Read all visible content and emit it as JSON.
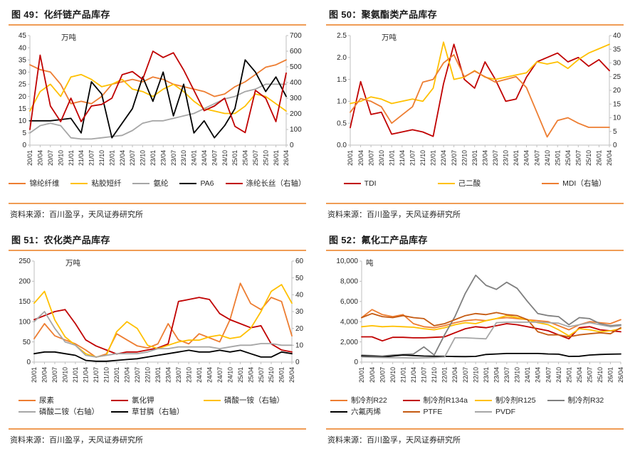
{
  "accent_color": "#F09C55",
  "source_text": "资料来源：百川盈孚，天风证券研究所",
  "chart_data": [
    {
      "type": "line",
      "title": "图 49：化纤链产品库存",
      "unit": "万吨",
      "grid": false,
      "legend_position": "bottom",
      "x": [
        "20/01",
        "20/04",
        "20/07",
        "20/10",
        "21/01",
        "21/04",
        "21/07",
        "21/10",
        "22/01",
        "22/04",
        "22/07",
        "22/10",
        "23/01",
        "23/04",
        "23/07",
        "23/10",
        "24/01",
        "24/04",
        "24/07",
        "24/10",
        "25/01",
        "25/04",
        "25/07",
        "25/10",
        "26/01",
        "26/04"
      ],
      "left_axis": {
        "range": [
          0,
          45
        ],
        "ticks": [
          "0",
          "5",
          "10",
          "15",
          "20",
          "25",
          "30",
          "35",
          "40",
          "45"
        ]
      },
      "right_axis": {
        "range": [
          0,
          700
        ],
        "ticks": [
          "0",
          "100",
          "200",
          "300",
          "400",
          "500",
          "600",
          "700"
        ]
      },
      "series": [
        {
          "name": "锦纶纤维",
          "color": "#ED7D31",
          "axis": "left",
          "values": [
            33,
            31,
            30,
            25,
            17,
            18,
            17,
            20,
            25,
            26,
            27,
            26,
            28,
            27,
            25,
            24,
            23,
            22,
            20,
            21,
            24,
            26,
            29,
            32,
            33,
            35
          ]
        },
        {
          "name": "粘胶短纤",
          "color": "#FFC000",
          "axis": "left",
          "values": [
            14,
            22,
            25,
            20,
            28,
            29,
            27,
            24,
            25,
            27,
            23,
            22,
            20,
            23,
            25,
            22,
            18,
            15,
            14,
            13,
            13,
            16,
            21,
            20,
            17,
            14
          ]
        },
        {
          "name": "氨纶",
          "color": "#A6A6A6",
          "axis": "left",
          "values": [
            5,
            8,
            9,
            8,
            3,
            2.5,
            2.5,
            3,
            3.5,
            4,
            6,
            9,
            10,
            10,
            11,
            12,
            13,
            15,
            17,
            19,
            20,
            22,
            23,
            25,
            25,
            25
          ]
        },
        {
          "name": "PA6",
          "color": "#000000",
          "axis": "left",
          "values": [
            10,
            10,
            10,
            10.5,
            11,
            5,
            26,
            21,
            3,
            9,
            15,
            28,
            18,
            30,
            12,
            25,
            5,
            10,
            3,
            8,
            15,
            35,
            30,
            22,
            28,
            20
          ]
        },
        {
          "name": "涤纶长丝（右轴）",
          "color": "#C00000",
          "axis": "right",
          "values": [
            100,
            575,
            250,
            150,
            300,
            150,
            250,
            260,
            300,
            450,
            470,
            420,
            600,
            560,
            590,
            480,
            350,
            220,
            250,
            300,
            120,
            80,
            350,
            300,
            150,
            460
          ]
        }
      ]
    },
    {
      "type": "line",
      "title": "图 50：聚氨酯类产品库存",
      "unit": "万吨",
      "grid": false,
      "legend_position": "bottom",
      "x": [
        "20/01",
        "20/04",
        "20/07",
        "20/10",
        "21/01",
        "21/04",
        "21/07",
        "21/10",
        "22/01",
        "22/04",
        "22/07",
        "22/10",
        "23/01",
        "23/04",
        "23/07",
        "23/10",
        "24/01",
        "24/04",
        "24/07",
        "24/10",
        "25/01",
        "25/04",
        "25/07",
        "25/10",
        "26/01",
        "26/04"
      ],
      "left_axis": {
        "range": [
          0,
          2.5
        ],
        "ticks": [
          "0.0",
          "0.5",
          "1.0",
          "1.5",
          "2.0",
          "2.5"
        ]
      },
      "right_axis": {
        "range": [
          0,
          40
        ],
        "ticks": [
          "0",
          "5",
          "10",
          "15",
          "20",
          "25",
          "30",
          "35",
          "40"
        ]
      },
      "series": [
        {
          "name": "TDI",
          "color": "#C00000",
          "axis": "left",
          "values": [
            0.4,
            1.45,
            0.7,
            0.75,
            0.25,
            0.3,
            0.35,
            0.3,
            0.2,
            1.4,
            2.3,
            1.5,
            1.3,
            1.9,
            1.5,
            1.0,
            1.05,
            1.55,
            1.9,
            2.0,
            2.1,
            1.9,
            2.0,
            1.8,
            1.95,
            1.7
          ]
        },
        {
          "name": "己二酸",
          "color": "#FFC000",
          "axis": "left",
          "values": [
            0.95,
            1.0,
            1.1,
            1.05,
            0.95,
            1.0,
            1.05,
            1.0,
            1.3,
            2.35,
            1.5,
            1.55,
            1.7,
            1.55,
            1.5,
            1.55,
            1.6,
            1.65,
            1.9,
            1.85,
            1.9,
            1.75,
            1.95,
            2.1,
            2.2,
            2.3
          ]
        },
        {
          "name": "MDI（右轴）",
          "color": "#ED7D31",
          "axis": "right",
          "values": [
            12,
            17,
            16,
            14,
            8,
            11,
            14,
            23,
            24,
            30,
            33,
            25,
            27,
            25,
            23,
            24,
            25,
            21,
            12,
            3,
            9,
            10,
            8,
            6.5,
            6.5,
            6.5
          ]
        }
      ]
    },
    {
      "type": "line",
      "title": "图 51：农化类产品库存",
      "unit": "万吨",
      "grid": false,
      "legend_position": "bottom",
      "x": [
        "20/01",
        "20/04",
        "20/07",
        "20/10",
        "21/01",
        "21/04",
        "21/07",
        "21/10",
        "22/01",
        "22/04",
        "22/07",
        "22/10",
        "23/01",
        "23/04",
        "23/07",
        "23/10",
        "24/01",
        "24/04",
        "24/07",
        "24/10",
        "25/01",
        "25/04",
        "25/07",
        "25/10",
        "26/01",
        "26/04"
      ],
      "left_axis": {
        "range": [
          0,
          250
        ],
        "ticks": [
          "0",
          "50",
          "100",
          "150",
          "200",
          "250"
        ]
      },
      "right_axis": {
        "range": [
          0,
          60
        ],
        "ticks": [
          "0",
          "10",
          "20",
          "30",
          "40",
          "50",
          "60"
        ]
      },
      "series": [
        {
          "name": "尿素",
          "color": "#ED7D31",
          "axis": "left",
          "values": [
            58,
            95,
            65,
            55,
            45,
            30,
            12,
            20,
            70,
            55,
            40,
            35,
            45,
            95,
            55,
            45,
            70,
            60,
            50,
            105,
            195,
            145,
            130,
            160,
            150,
            65
          ]
        },
        {
          "name": "氯化钾",
          "color": "#C00000",
          "axis": "left",
          "values": [
            105,
            115,
            125,
            130,
            95,
            55,
            40,
            30,
            20,
            25,
            25,
            30,
            35,
            45,
            150,
            155,
            160,
            155,
            120,
            105,
            95,
            85,
            90,
            45,
            30,
            25
          ]
        },
        {
          "name": "磷酸一铵（右轴）",
          "color": "#FFC000",
          "axis": "right",
          "values": [
            35,
            42,
            25,
            15,
            10,
            5,
            3,
            4,
            18,
            24,
            20,
            10,
            8,
            10,
            12,
            13,
            13,
            15,
            16,
            14,
            15,
            20,
            30,
            42,
            46,
            35
          ]
        },
        {
          "name": "磷酸二铵（右轴）",
          "color": "#A6A6A6",
          "axis": "right",
          "values": [
            24,
            30,
            20,
            12,
            10,
            4,
            3,
            4,
            5,
            5,
            5,
            6,
            8,
            8,
            9,
            9,
            9,
            9,
            8,
            9,
            10,
            10,
            11,
            11,
            10,
            10
          ]
        },
        {
          "name": "草甘膦（右轴）",
          "color": "#000000",
          "axis": "right",
          "values": [
            5,
            6,
            6,
            5,
            4,
            1,
            0.5,
            0.5,
            1,
            1.5,
            2,
            3,
            4,
            5,
            6,
            7,
            6,
            6,
            7,
            6,
            7,
            5,
            3,
            3,
            6,
            5
          ]
        }
      ]
    },
    {
      "type": "line",
      "title": "图 52：氟化工产品库存",
      "unit": "吨",
      "grid": false,
      "legend_position": "bottom",
      "x": [
        "20/01",
        "20/04",
        "20/07",
        "20/10",
        "21/01",
        "21/04",
        "21/07",
        "21/10",
        "22/01",
        "22/04",
        "22/07",
        "22/10",
        "23/01",
        "23/04",
        "23/07",
        "23/10",
        "24/01",
        "24/04",
        "24/07",
        "24/10",
        "25/01",
        "25/04",
        "25/07",
        "25/10",
        "26/01",
        "26/04"
      ],
      "left_axis": {
        "range": [
          0,
          10000
        ],
        "ticks": [
          "0",
          "2,000",
          "4,000",
          "6,000",
          "8,000",
          "10,000"
        ]
      },
      "right_axis": null,
      "series": [
        {
          "name": "制冷剂R22",
          "color": "#ED7D31",
          "axis": "left",
          "values": [
            4400,
            5200,
            4700,
            4500,
            4700,
            3800,
            3500,
            3400,
            3600,
            3900,
            4100,
            4200,
            4100,
            4300,
            4400,
            4300,
            4200,
            4100,
            4000,
            3600,
            3200,
            3700,
            4000,
            3900,
            3800,
            4200
          ]
        },
        {
          "name": "制冷剂R134a",
          "color": "#C00000",
          "axis": "left",
          "values": [
            2500,
            2500,
            2100,
            2450,
            2450,
            2400,
            2400,
            2450,
            2500,
            2900,
            3300,
            3500,
            3400,
            3600,
            3800,
            3700,
            3500,
            3300,
            3100,
            2700,
            2300,
            3400,
            3500,
            3200,
            3100,
            3000
          ]
        },
        {
          "name": "制冷剂R125",
          "color": "#FFC000",
          "axis": "left",
          "values": [
            3500,
            3600,
            3500,
            3550,
            3500,
            3450,
            3300,
            3200,
            3400,
            3700,
            3900,
            3800,
            4100,
            4300,
            4600,
            4400,
            4200,
            3900,
            3700,
            3200,
            2600,
            3300,
            3200,
            3000,
            3100,
            3300
          ]
        },
        {
          "name": "制冷剂R32",
          "color": "#7F7F7F",
          "axis": "left",
          "values": [
            700,
            650,
            600,
            700,
            750,
            800,
            1500,
            700,
            2700,
            4500,
            6800,
            8600,
            7600,
            7200,
            7900,
            7300,
            6000,
            4800,
            4600,
            4500,
            3700,
            4400,
            4300,
            3800,
            3600,
            3700
          ]
        },
        {
          "name": "六氟丙烯",
          "color": "#000000",
          "axis": "left",
          "values": [
            600,
            550,
            500,
            600,
            700,
            650,
            600,
            580,
            560,
            550,
            540,
            560,
            750,
            800,
            850,
            850,
            850,
            850,
            800,
            780,
            560,
            580,
            700,
            750,
            780,
            800
          ]
        },
        {
          "name": "PTFE",
          "color": "#C55A11",
          "axis": "left",
          "values": [
            4400,
            4800,
            4500,
            4400,
            4600,
            4400,
            4300,
            3600,
            3800,
            4200,
            4600,
            4800,
            4700,
            4900,
            4700,
            4600,
            4200,
            3000,
            2700,
            2700,
            2500,
            2700,
            2800,
            2900,
            2800,
            3400
          ]
        },
        {
          "name": "PVDF",
          "color": "#A6A6A6",
          "axis": "left",
          "values": [
            500,
            480,
            450,
            430,
            420,
            400,
            420,
            450,
            500,
            2400,
            2400,
            2350,
            2300,
            3900,
            3950,
            3950,
            3950,
            3950,
            3900,
            3850,
            3500,
            3700,
            3900,
            3700,
            3500,
            3600
          ]
        }
      ]
    }
  ]
}
